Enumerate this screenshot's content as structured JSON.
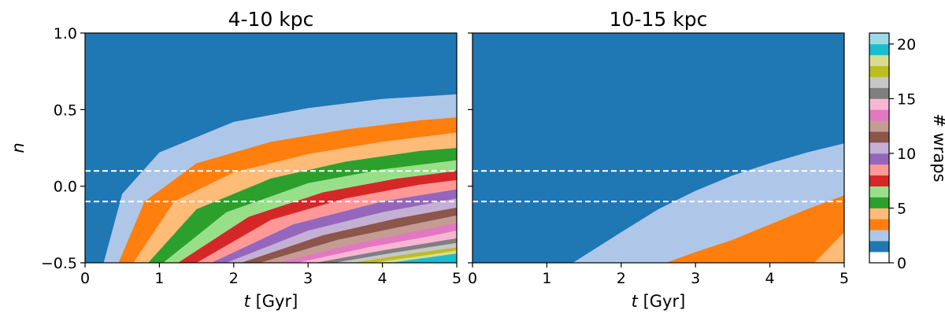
{
  "chart_data": [
    {
      "type": "heatmap",
      "title": "4-10 kpc",
      "xlabel_var": "t",
      "xlabel_unit": " [Gyr]",
      "ylabel": "n",
      "xlim": [
        0,
        5
      ],
      "ylim": [
        -0.5,
        1.0
      ],
      "xticks": [
        "0",
        "1",
        "2",
        "3",
        "4",
        "5"
      ],
      "yticks": [
        "−0.5",
        "0.0",
        "0.5",
        "1.0"
      ],
      "reference_lines_n": [
        0.1,
        -0.1
      ],
      "wrap_boundaries": [
        {
          "wraps": 2,
          "points": [
            [
              0.25,
              -0.5
            ],
            [
              0.5,
              -0.05
            ],
            [
              1.0,
              0.22
            ],
            [
              2.0,
              0.42
            ],
            [
              3.0,
              0.51
            ],
            [
              4.0,
              0.57
            ],
            [
              5.0,
              0.6
            ]
          ]
        },
        {
          "wraps": 3,
          "points": [
            [
              0.45,
              -0.5
            ],
            [
              0.8,
              -0.1
            ],
            [
              1.5,
              0.15
            ],
            [
              2.5,
              0.29
            ],
            [
              3.5,
              0.37
            ],
            [
              4.5,
              0.43
            ],
            [
              5.0,
              0.45
            ]
          ]
        },
        {
          "wraps": 4,
          "points": [
            [
              0.65,
              -0.5
            ],
            [
              1.2,
              -0.1
            ],
            [
              2.0,
              0.09
            ],
            [
              3.0,
              0.21
            ],
            [
              4.0,
              0.29
            ],
            [
              5.0,
              0.35
            ]
          ]
        },
        {
          "wraps": 5,
          "points": [
            [
              0.85,
              -0.5
            ],
            [
              1.5,
              -0.15
            ],
            [
              2.5,
              0.05
            ],
            [
              3.5,
              0.16
            ],
            [
              4.5,
              0.23
            ],
            [
              5.0,
              0.25
            ]
          ]
        },
        {
          "wraps": 6,
          "points": [
            [
              1.05,
              -0.5
            ],
            [
              1.9,
              -0.17
            ],
            [
              3.0,
              0.02
            ],
            [
              4.0,
              0.11
            ],
            [
              5.0,
              0.17
            ]
          ]
        },
        {
          "wraps": 7,
          "points": [
            [
              1.25,
              -0.5
            ],
            [
              2.2,
              -0.2
            ],
            [
              3.2,
              -0.04
            ],
            [
              4.2,
              0.05
            ],
            [
              5.0,
              0.1
            ]
          ]
        },
        {
          "wraps": 8,
          "points": [
            [
              1.5,
              -0.5
            ],
            [
              2.5,
              -0.22
            ],
            [
              3.5,
              -0.08
            ],
            [
              4.5,
              0.01
            ],
            [
              5.0,
              0.04
            ]
          ]
        },
        {
          "wraps": 9,
          "points": [
            [
              1.7,
              -0.5
            ],
            [
              2.8,
              -0.25
            ],
            [
              4.0,
              -0.1
            ],
            [
              5.0,
              -0.02
            ]
          ]
        },
        {
          "wraps": 10,
          "points": [
            [
              1.9,
              -0.5
            ],
            [
              3.0,
              -0.29
            ],
            [
              4.0,
              -0.17
            ],
            [
              5.0,
              -0.08
            ]
          ]
        },
        {
          "wraps": 11,
          "points": [
            [
              2.1,
              -0.5
            ],
            [
              3.2,
              -0.32
            ],
            [
              4.2,
              -0.21
            ],
            [
              5.0,
              -0.14
            ]
          ]
        },
        {
          "wraps": 12,
          "points": [
            [
              2.35,
              -0.5
            ],
            [
              3.4,
              -0.35
            ],
            [
              4.4,
              -0.25
            ],
            [
              5.0,
              -0.19
            ]
          ]
        },
        {
          "wraps": 13,
          "points": [
            [
              2.6,
              -0.5
            ],
            [
              3.6,
              -0.38
            ],
            [
              4.5,
              -0.29
            ],
            [
              5.0,
              -0.24
            ]
          ]
        },
        {
          "wraps": 14,
          "points": [
            [
              2.85,
              -0.5
            ],
            [
              3.8,
              -0.4
            ],
            [
              4.6,
              -0.33
            ],
            [
              5.0,
              -0.29
            ]
          ]
        },
        {
          "wraps": 15,
          "points": [
            [
              3.1,
              -0.5
            ],
            [
              4.0,
              -0.42
            ],
            [
              5.0,
              -0.34
            ]
          ]
        },
        {
          "wraps": 16,
          "points": [
            [
              3.35,
              -0.5
            ],
            [
              4.2,
              -0.43
            ],
            [
              5.0,
              -0.37
            ]
          ]
        },
        {
          "wraps": 17,
          "points": [
            [
              3.6,
              -0.5
            ],
            [
              4.4,
              -0.44
            ],
            [
              5.0,
              -0.4
            ]
          ]
        },
        {
          "wraps": 18,
          "points": [
            [
              3.85,
              -0.5
            ],
            [
              4.6,
              -0.45
            ],
            [
              5.0,
              -0.42
            ]
          ]
        },
        {
          "wraps": 19,
          "points": [
            [
              4.1,
              -0.5
            ],
            [
              5.0,
              -0.44
            ]
          ]
        }
      ]
    },
    {
      "type": "heatmap",
      "title": "10-15 kpc",
      "xlabel_var": "t",
      "xlabel_unit": " [Gyr]",
      "ylabel": "",
      "xlim": [
        0,
        5
      ],
      "ylim": [
        -0.5,
        1.0
      ],
      "xticks": [
        "0",
        "1",
        "2",
        "3",
        "4",
        "5"
      ],
      "yticks": [],
      "reference_lines_n": [
        0.1,
        -0.1
      ],
      "wrap_boundaries": [
        {
          "wraps": 2,
          "points": [
            [
              1.35,
              -0.5
            ],
            [
              2.0,
              -0.3
            ],
            [
              2.5,
              -0.15
            ],
            [
              3.0,
              -0.03
            ],
            [
              3.5,
              0.07
            ],
            [
              4.0,
              0.15
            ],
            [
              4.5,
              0.22
            ],
            [
              5.0,
              0.28
            ]
          ]
        },
        {
          "wraps": 3,
          "points": [
            [
              2.6,
              -0.5
            ],
            [
              3.0,
              -0.43
            ],
            [
              3.5,
              -0.35
            ],
            [
              4.0,
              -0.25
            ],
            [
              4.5,
              -0.15
            ],
            [
              5.0,
              -0.06
            ]
          ]
        },
        {
          "wraps": 4,
          "points": [
            [
              4.6,
              -0.5
            ],
            [
              5.0,
              -0.3
            ]
          ]
        }
      ]
    }
  ],
  "colorbar": {
    "label": "# wraps",
    "range": [
      0,
      21
    ],
    "ticks": [
      "0",
      "5",
      "10",
      "15",
      "20"
    ],
    "colors": [
      "#ffffff",
      "#1f77b4",
      "#aec7e8",
      "#ff7f0e",
      "#ffbb78",
      "#2ca02c",
      "#98df8a",
      "#d62728",
      "#ff9896",
      "#9467bd",
      "#c5b0d5",
      "#8c564b",
      "#c49c94",
      "#e377c2",
      "#f7b6d2",
      "#7f7f7f",
      "#c7c7c7",
      "#bcbd22",
      "#dbdb8d",
      "#17becf",
      "#9edae5"
    ]
  },
  "reference_line_color": "#ffffff"
}
